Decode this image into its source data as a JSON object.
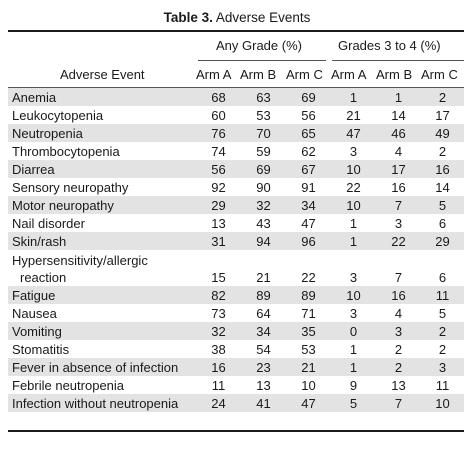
{
  "title": {
    "label": "Table 3.",
    "text": "Adverse Events"
  },
  "header": {
    "row_label": "Adverse Event",
    "groups": [
      "Any Grade (%)",
      "Grades 3 to 4 (%)"
    ],
    "arms": [
      "Arm A",
      "Arm B",
      "Arm C",
      "Arm A",
      "Arm B",
      "Arm C"
    ]
  },
  "rows": [
    {
      "event": "Anemia",
      "values": [
        "68",
        "63",
        "69",
        "1",
        "1",
        "2"
      ]
    },
    {
      "event": "Leukocytopenia",
      "values": [
        "60",
        "53",
        "56",
        "21",
        "14",
        "17"
      ]
    },
    {
      "event": "Neutropenia",
      "values": [
        "76",
        "70",
        "65",
        "47",
        "46",
        "49"
      ]
    },
    {
      "event": "Thrombocytopenia",
      "values": [
        "74",
        "59",
        "62",
        "3",
        "4",
        "2"
      ]
    },
    {
      "event": "Diarrea",
      "values": [
        "56",
        "69",
        "67",
        "10",
        "17",
        "16"
      ]
    },
    {
      "event": "Sensory neuropathy",
      "values": [
        "92",
        "90",
        "91",
        "22",
        "16",
        "14"
      ]
    },
    {
      "event": "Motor neuropathy",
      "values": [
        "29",
        "32",
        "34",
        "10",
        "7",
        "5"
      ]
    },
    {
      "event": "Nail disorder",
      "values": [
        "13",
        "43",
        "47",
        "1",
        "3",
        "6"
      ]
    },
    {
      "event": "Skin/rash",
      "values": [
        "31",
        "94",
        "96",
        "1",
        "22",
        "29"
      ]
    },
    {
      "event_lines": [
        "Hypersensitivity/allergic",
        "reaction"
      ],
      "values": [
        "15",
        "21",
        "22",
        "3",
        "7",
        "6"
      ]
    },
    {
      "event": "Fatigue",
      "values": [
        "82",
        "89",
        "89",
        "10",
        "16",
        "11"
      ]
    },
    {
      "event": "Nausea",
      "values": [
        "73",
        "64",
        "71",
        "3",
        "4",
        "5"
      ]
    },
    {
      "event": "Vomiting",
      "values": [
        "32",
        "34",
        "35",
        "0",
        "3",
        "2"
      ]
    },
    {
      "event": "Stomatitis",
      "values": [
        "38",
        "54",
        "53",
        "1",
        "2",
        "2"
      ]
    },
    {
      "event": "Fever in absence of infection",
      "values": [
        "16",
        "23",
        "21",
        "1",
        "2",
        "3"
      ]
    },
    {
      "event": "Febrile neutropenia",
      "values": [
        "11",
        "13",
        "10",
        "9",
        "13",
        "11"
      ]
    },
    {
      "event": "Infection without neutropenia",
      "values": [
        "24",
        "41",
        "47",
        "5",
        "7",
        "10"
      ]
    }
  ],
  "colors": {
    "row_shade": "#e3e3e3",
    "text": "#1a1a1a",
    "rule": "#1a1a1a"
  }
}
